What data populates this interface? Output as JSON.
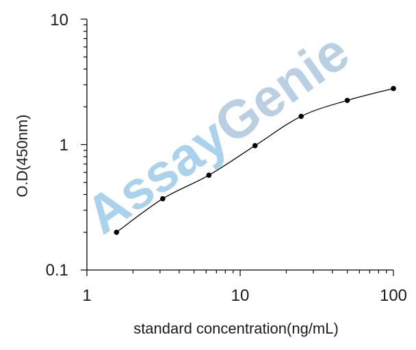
{
  "chart_data": {
    "type": "line",
    "x_scale": "log",
    "y_scale": "log",
    "xlabel": "standard concentration(ng/mL)",
    "ylabel": "O.D(450nm)",
    "xlim": [
      1,
      100
    ],
    "ylim": [
      0.1,
      10
    ],
    "x_tick_labels": [
      "1",
      "10",
      "100"
    ],
    "y_tick_labels": [
      "0.1",
      "1",
      "10"
    ],
    "grid": false,
    "series": [
      {
        "x": [
          1.56,
          3.125,
          6.25,
          12.5,
          25,
          50,
          100
        ],
        "y": [
          0.2,
          0.37,
          0.57,
          0.98,
          1.68,
          2.25,
          2.8
        ],
        "color": "#000000"
      }
    ],
    "watermark": {
      "part1": "Assay",
      "part2": "Genie",
      "color1": "#a9d3ec",
      "color2": "#b9cfe2"
    }
  }
}
